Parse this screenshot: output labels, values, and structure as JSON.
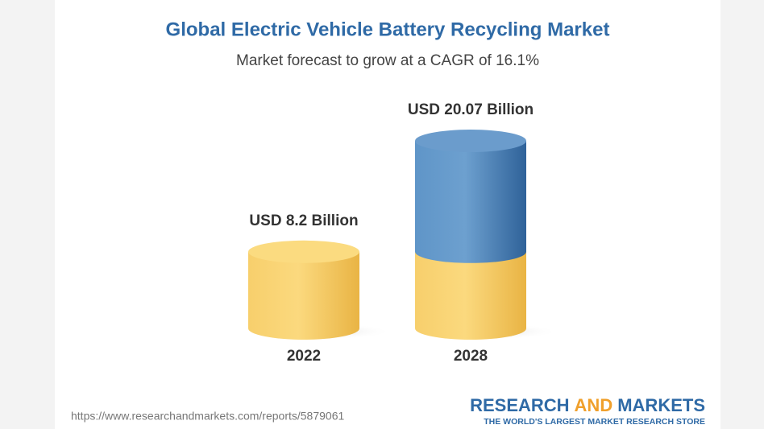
{
  "chart_data": {
    "type": "cylinder-bar",
    "title": "Global Electric Vehicle Battery Recycling Market",
    "subtitle": "Market forecast to grow at a CAGR of 16.1%",
    "categories": [
      "2022",
      "2028"
    ],
    "values": [
      8.2,
      20.07
    ],
    "value_labels": [
      "USD 8.2 Billion",
      "USD 20.07 Billion"
    ],
    "colors": [
      "#f2c253",
      "#4b82b8"
    ]
  },
  "footer": {
    "source": "https://www.researchandmarkets.com/reports/5879061",
    "logo_words": [
      "RESEARCH",
      "AND",
      "MARKETS"
    ],
    "tagline": "THE WORLD'S LARGEST MARKET RESEARCH STORE"
  }
}
